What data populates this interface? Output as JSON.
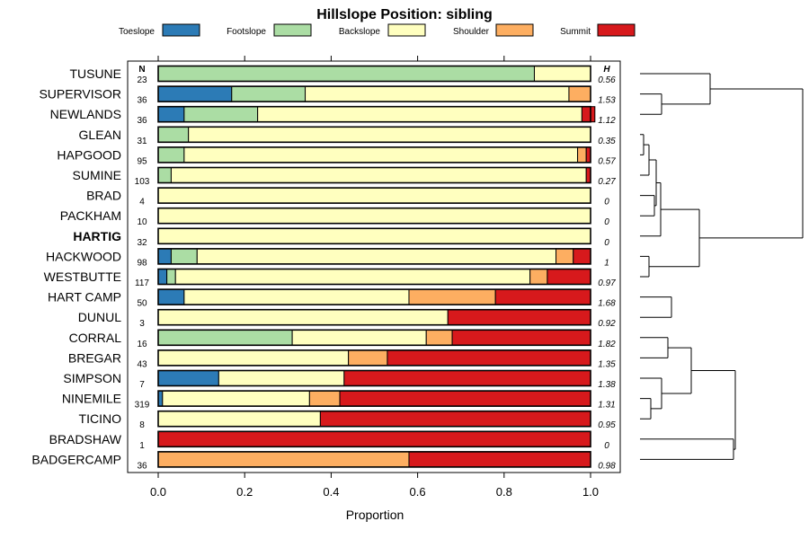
{
  "chart_data": {
    "type": "stacked-bar",
    "title": "Hillslope Position: sibling",
    "xlabel": "Proportion",
    "xlim": [
      0,
      1
    ],
    "xticks": [
      "0.0",
      "0.2",
      "0.4",
      "0.6",
      "0.8",
      "1.0"
    ],
    "n_header": "N",
    "h_header": "H",
    "legend_position": "top",
    "series": [
      {
        "name": "Toeslope",
        "color": "#2c7bb6"
      },
      {
        "name": "Footslope",
        "color": "#abdda4"
      },
      {
        "name": "Backslope",
        "color": "#ffffbf"
      },
      {
        "name": "Shoulder",
        "color": "#fdae61"
      },
      {
        "name": "Summit",
        "color": "#d7191c"
      }
    ],
    "rows": [
      {
        "label": "TUSUNE",
        "n": "23",
        "h": "0.56",
        "values": [
          0,
          0.87,
          0.13,
          0,
          0
        ]
      },
      {
        "label": "SUPERVISOR",
        "n": "36",
        "h": "1.53",
        "values": [
          0.17,
          0.17,
          0.61,
          0.05,
          0
        ]
      },
      {
        "label": "NEWLANDS",
        "n": "36",
        "h": "1.12",
        "values": [
          0.06,
          0.17,
          0.75,
          0,
          0.03
        ]
      },
      {
        "label": "GLEAN",
        "n": "31",
        "h": "0.35",
        "values": [
          0,
          0.07,
          0.93,
          0,
          0
        ]
      },
      {
        "label": "HAPGOOD",
        "n": "95",
        "h": "0.57",
        "values": [
          0,
          0.06,
          0.91,
          0.02,
          0.01
        ]
      },
      {
        "label": "SUMINE",
        "n": "103",
        "h": "0.27",
        "values": [
          0,
          0.03,
          0.96,
          0,
          0.01
        ]
      },
      {
        "label": "BRAD",
        "n": "4",
        "h": "0",
        "values": [
          0,
          0,
          1,
          0,
          0
        ]
      },
      {
        "label": "PACKHAM",
        "n": "10",
        "h": "0",
        "values": [
          0,
          0,
          1,
          0,
          0
        ]
      },
      {
        "label": "HARTIG",
        "n": "32",
        "h": "0",
        "values": [
          0,
          0,
          1,
          0,
          0
        ],
        "bold": true
      },
      {
        "label": "HACKWOOD",
        "n": "98",
        "h": "1",
        "values": [
          0.03,
          0.06,
          0.83,
          0.04,
          0.04
        ]
      },
      {
        "label": "WESTBUTTE",
        "n": "117",
        "h": "0.97",
        "values": [
          0.02,
          0.02,
          0.82,
          0.04,
          0.1
        ]
      },
      {
        "label": "HART CAMP",
        "n": "50",
        "h": "1.68",
        "values": [
          0.06,
          0,
          0.52,
          0.2,
          0.22
        ]
      },
      {
        "label": "DUNUL",
        "n": "3",
        "h": "0.92",
        "values": [
          0,
          0,
          0.67,
          0,
          0.33
        ]
      },
      {
        "label": "CORRAL",
        "n": "16",
        "h": "1.82",
        "values": [
          0,
          0.31,
          0.31,
          0.06,
          0.32
        ]
      },
      {
        "label": "BREGAR",
        "n": "43",
        "h": "1.35",
        "values": [
          0,
          0,
          0.44,
          0.09,
          0.47
        ]
      },
      {
        "label": "SIMPSON",
        "n": "7",
        "h": "1.38",
        "values": [
          0.14,
          0,
          0.29,
          0,
          0.57
        ]
      },
      {
        "label": "NINEMILE",
        "n": "319",
        "h": "1.31",
        "values": [
          0.01,
          0,
          0.34,
          0.07,
          0.58
        ]
      },
      {
        "label": "TICINO",
        "n": "8",
        "h": "0.95",
        "values": [
          0,
          0,
          0.375,
          0,
          0.625
        ]
      },
      {
        "label": "BRADSHAW",
        "n": "1",
        "h": "0",
        "values": [
          0,
          0,
          0,
          0,
          1
        ]
      },
      {
        "label": "BADGERCAMP",
        "n": "36",
        "h": "0.98",
        "values": [
          0,
          0,
          0,
          0.58,
          0.42
        ]
      }
    ]
  }
}
